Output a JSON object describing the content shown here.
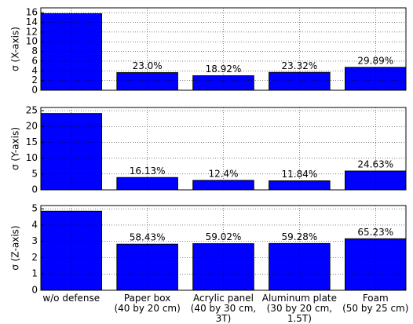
{
  "chart_data": [
    {
      "type": "bar",
      "ylabel": "σ (X-axis)",
      "values": [
        15.8,
        3.63,
        2.99,
        3.68,
        4.72
      ],
      "annotations": [
        "23.0%",
        "18.92%",
        "23.32%",
        "29.89%"
      ],
      "color": "#0000ff",
      "ylim": [
        0,
        17
      ],
      "yticks": [
        0,
        2,
        4,
        6,
        8,
        10,
        12,
        14,
        16
      ],
      "grid": true
    },
    {
      "type": "bar",
      "ylabel": "σ (Y-axis)",
      "values": [
        24.1,
        3.89,
        2.99,
        2.85,
        5.94
      ],
      "annotations": [
        "16.13%",
        "12.4%",
        "11.84%",
        "24.63%"
      ],
      "color": "#0000ff",
      "ylim": [
        0,
        26
      ],
      "yticks": [
        0,
        5,
        10,
        15,
        20,
        25
      ],
      "grid": true
    },
    {
      "type": "bar",
      "ylabel": "σ (Z-axis)",
      "values": [
        4.85,
        2.83,
        2.86,
        2.87,
        3.16
      ],
      "annotations": [
        "58.43%",
        "59.02%",
        "59.28%",
        "65.23%"
      ],
      "color": "#0000ff",
      "ylim": [
        0,
        5.2
      ],
      "yticks": [
        0,
        1,
        2,
        3,
        4,
        5
      ],
      "grid": true,
      "categories": [
        "w/o defense",
        "Paper box\n(40 by 20 cm)",
        "Acrylic panel\n(40 by 30 cm,\n3T)",
        "Aluminum plate\n(30 by 20 cm,\n1.5T)",
        "Foam\n(50 by 25 cm)"
      ]
    }
  ]
}
